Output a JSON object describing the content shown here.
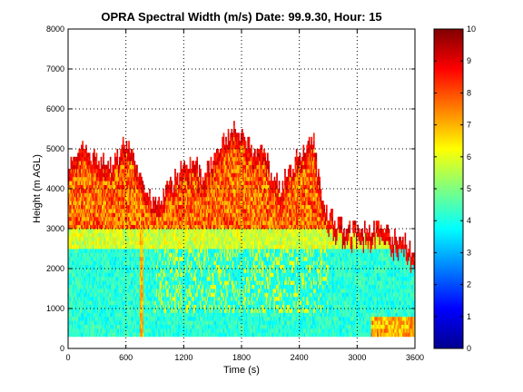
{
  "chart_data": {
    "type": "heatmap",
    "title": "OPRA Spectral Width (m/s)  Date: 99.9.30, Hour: 15",
    "xlabel": "Time (s)",
    "ylabel": "Height (m AGL)",
    "xlim": [
      0,
      3600
    ],
    "ylim": [
      0,
      8000
    ],
    "x_ticks": [
      0,
      600,
      1200,
      1800,
      2400,
      3000,
      3600
    ],
    "x_tick_labels": [
      "0",
      "600",
      "1200",
      "1800",
      "2400",
      "3000",
      "3600"
    ],
    "y_ticks": [
      0,
      1000,
      2000,
      3000,
      4000,
      5000,
      6000,
      7000,
      8000
    ],
    "y_tick_labels": [
      "0",
      "1000",
      "2000",
      "3000",
      "4000",
      "5000",
      "6000",
      "7000",
      "8000"
    ],
    "grid": "dotted",
    "colormap": "jet",
    "colorbar": {
      "range": [
        0,
        10
      ],
      "ticks": [
        0,
        1,
        2,
        3,
        4,
        5,
        6,
        7,
        8,
        9,
        10
      ],
      "tick_labels": [
        "0",
        "1",
        "2",
        "3",
        "4",
        "5",
        "6",
        "7",
        "8",
        "9",
        "10"
      ]
    },
    "data_bottom_height_m": 300,
    "echo_top_profile": [
      [
        0,
        4700
      ],
      [
        150,
        4950
      ],
      [
        250,
        4750
      ],
      [
        350,
        4600
      ],
      [
        500,
        4700
      ],
      [
        600,
        5200
      ],
      [
        700,
        4500
      ],
      [
        780,
        4100
      ],
      [
        850,
        3700
      ],
      [
        950,
        3800
      ],
      [
        1100,
        4200
      ],
      [
        1200,
        4500
      ],
      [
        1300,
        4700
      ],
      [
        1400,
        4300
      ],
      [
        1500,
        4700
      ],
      [
        1600,
        5200
      ],
      [
        1700,
        5500
      ],
      [
        1800,
        5400
      ],
      [
        1900,
        5000
      ],
      [
        2000,
        5100
      ],
      [
        2100,
        4400
      ],
      [
        2200,
        4000
      ],
      [
        2300,
        4500
      ],
      [
        2400,
        4800
      ],
      [
        2500,
        5100
      ],
      [
        2550,
        5200
      ],
      [
        2600,
        4200
      ],
      [
        2700,
        3400
      ],
      [
        2800,
        3100
      ],
      [
        2900,
        3000
      ],
      [
        3000,
        3000
      ],
      [
        3100,
        3000
      ],
      [
        3200,
        3000
      ],
      [
        3300,
        2900
      ],
      [
        3400,
        2800
      ],
      [
        3500,
        2700
      ],
      [
        3600,
        2100
      ]
    ],
    "features": [
      {
        "x": 760,
        "note": "narrow vertical band of elevated width (~6-7) from ground to ~3000 m"
      },
      {
        "x_range": [
          3150,
          3600
        ],
        "y_range": [
          300,
          800
        ],
        "note": "region of elevated width (~6-8) near ground"
      }
    ],
    "typical_values_m_s": {
      "below_2500m": 3.5,
      "layer_2500_3000m": 5,
      "upper_cloud_layer": 7.5,
      "cloud_top_edge": 9.5
    }
  }
}
